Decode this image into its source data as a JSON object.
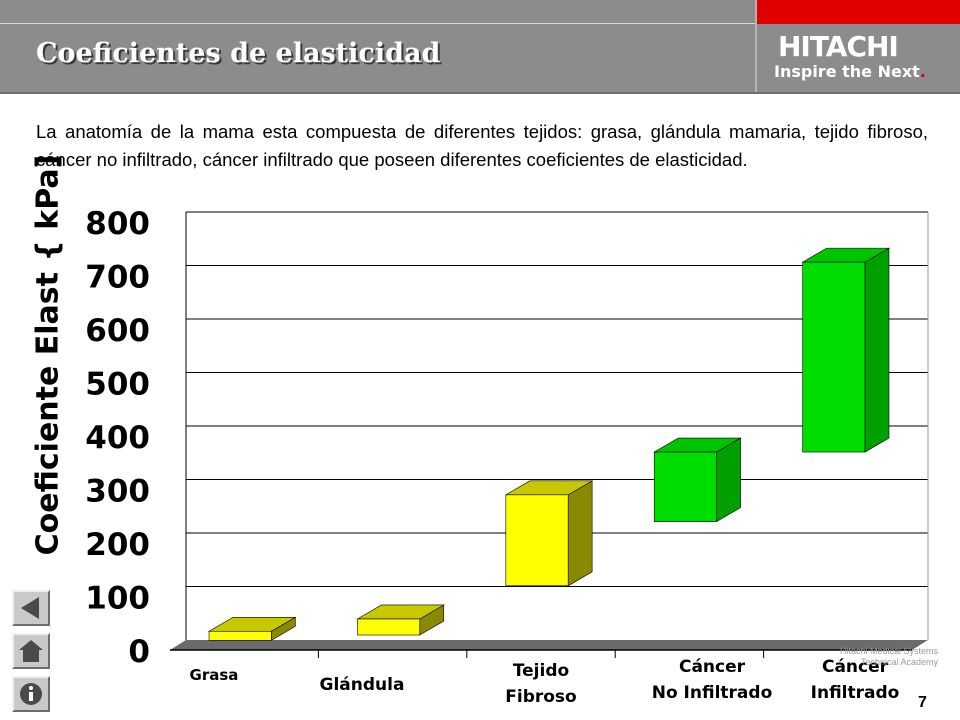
{
  "header": {
    "title": "Coeficientes de elasticidad",
    "brand": "HITACHI",
    "slogan": "Inspire the Next",
    "slogan_dot": "."
  },
  "intro_text": "La anatomía de la mama esta compuesta de diferentes tejidos: grasa, glándula mamaria, tejido fibroso, cáncer no infiltrado, cáncer infiltrado  que poseen diferentes coeficientes de elasticidad.",
  "chart_data": {
    "type": "bar",
    "subtype": "floating-3d-range",
    "ylabel": "Coeficiente Elast { kPa]",
    "ylim": [
      0,
      800
    ],
    "yticks": [
      0,
      100,
      200,
      300,
      400,
      500,
      600,
      700,
      800
    ],
    "grid": true,
    "categories": [
      {
        "lines": [
          "Grasa"
        ]
      },
      {
        "lines": [
          "Glándula"
        ]
      },
      {
        "lines": [
          "Tejido",
          "Fibroso"
        ]
      },
      {
        "lines": [
          "Cáncer",
          "No Infiltrado"
        ]
      },
      {
        "lines": [
          "Cáncer",
          "Infiltrado"
        ]
      }
    ],
    "ranges": [
      {
        "low": 18,
        "high": 35,
        "color": "#ffff00",
        "side": "#8a8a00",
        "top": "#c8c800"
      },
      {
        "low": 28,
        "high": 58,
        "color": "#ffff00",
        "side": "#8a8a00",
        "top": "#c8c800"
      },
      {
        "low": 120,
        "high": 290,
        "color": "#ffff00",
        "side": "#8a8a00",
        "top": "#c8c800"
      },
      {
        "low": 240,
        "high": 370,
        "color": "#00dd00",
        "side": "#00a000",
        "top": "#00c400"
      },
      {
        "low": 370,
        "high": 725,
        "color": "#00dd00",
        "side": "#00a000",
        "top": "#00c400"
      }
    ]
  },
  "footer": {
    "academy_line1": "Hitachi Medical Systems",
    "academy_line2": "Technical Academy",
    "page_number": "7"
  },
  "nav": {
    "prev_icon": "left-arrow-icon",
    "home_icon": "home-icon",
    "info_icon": "info-icon"
  }
}
